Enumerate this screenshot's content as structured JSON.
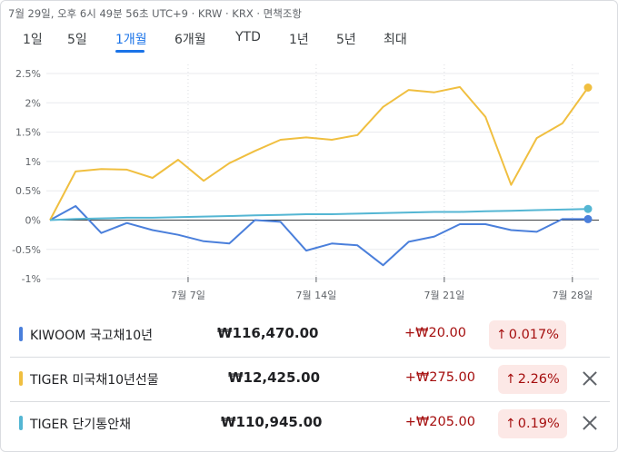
{
  "header": {
    "info": "7월 29일, 오후 6시 49분 56초 UTC+9 · KRW · KRX · 면책조항"
  },
  "tabs": [
    {
      "label": "1일",
      "active": false
    },
    {
      "label": "5일",
      "active": false
    },
    {
      "label": "1개월",
      "active": true
    },
    {
      "label": "6개월",
      "active": false
    },
    {
      "label": "YTD",
      "active": false
    },
    {
      "label": "1년",
      "active": false
    },
    {
      "label": "5년",
      "active": false
    },
    {
      "label": "최대",
      "active": false
    }
  ],
  "chart_data": {
    "type": "line",
    "x": [
      "6월 28일",
      "7월 1일",
      "7월 2일",
      "7월 3일",
      "7월 4일",
      "7월 5일",
      "7월 8일",
      "7월 9일",
      "7월 10일",
      "7월 11일",
      "7월 12일",
      "7월 15일",
      "7월 16일",
      "7월 17일",
      "7월 18일",
      "7월 19일",
      "7월 22일",
      "7월 23일",
      "7월 24일",
      "7월 25일",
      "7월 26일",
      "7월 29일"
    ],
    "x_ticks": [
      "7월 7일",
      "7월 14일",
      "7월 21일",
      "7월 28일"
    ],
    "y_ticks": [
      "2.5%",
      "2%",
      "1.5%",
      "1%",
      "0.5%",
      "0%",
      "-0.5%",
      "-1%"
    ],
    "ylim": [
      -1,
      2.5
    ],
    "grid": true,
    "series": [
      {
        "name": "KIWOOM 국고채10년",
        "color": "#4a7fdb",
        "values": [
          0,
          0.24,
          -0.22,
          -0.05,
          -0.17,
          -0.25,
          -0.36,
          -0.4,
          0,
          -0.03,
          -0.52,
          -0.4,
          -0.43,
          -0.77,
          -0.37,
          -0.28,
          -0.07,
          -0.07,
          -0.17,
          -0.2,
          0.017,
          0.017
        ]
      },
      {
        "name": "TIGER 미국채10년선물",
        "color": "#f0bf40",
        "values": [
          0,
          0.83,
          0.87,
          0.86,
          0.72,
          1.03,
          0.67,
          0.97,
          1.18,
          1.37,
          1.41,
          1.37,
          1.45,
          1.93,
          2.22,
          2.18,
          2.27,
          1.76,
          0.6,
          1.4,
          1.65,
          2.26
        ]
      },
      {
        "name": "TIGER 단기통안채",
        "color": "#54b6d3",
        "values": [
          0,
          0.02,
          0.03,
          0.04,
          0.04,
          0.05,
          0.06,
          0.07,
          0.08,
          0.09,
          0.1,
          0.1,
          0.11,
          0.12,
          0.13,
          0.14,
          0.14,
          0.15,
          0.16,
          0.17,
          0.18,
          0.19
        ]
      }
    ]
  },
  "rows": [
    {
      "name": "KIWOOM 국고채10년",
      "color": "#4a7fdb",
      "price": "₩116,470.00",
      "change": "+₩20.00",
      "arrow": "↑",
      "pct": "0.017%",
      "removable": false
    },
    {
      "name": "TIGER 미국채10년선물",
      "color": "#f0bf40",
      "price": "₩12,425.00",
      "change": "+₩275.00",
      "arrow": "↑",
      "pct": "2.26%",
      "removable": true
    },
    {
      "name": "TIGER 단기통안채",
      "color": "#54b6d3",
      "price": "₩110,945.00",
      "change": "+₩205.00",
      "arrow": "↑",
      "pct": "0.19%",
      "removable": true
    }
  ]
}
